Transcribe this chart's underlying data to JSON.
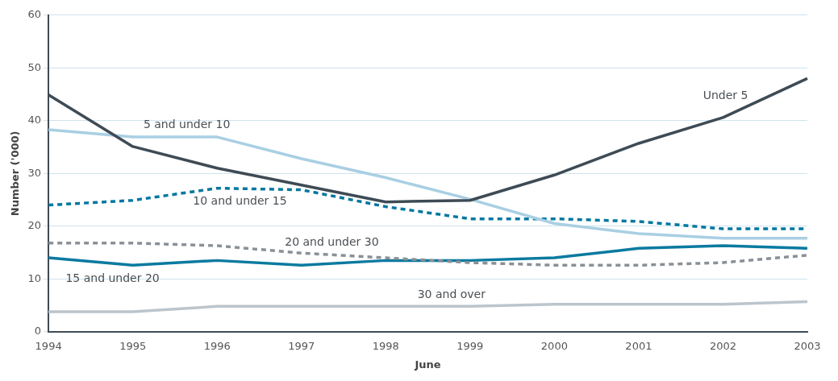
{
  "chart_data": {
    "type": "line",
    "xlabel": "June",
    "ylabel": "Number ('000)",
    "categories": [
      "1994",
      "1995",
      "1996",
      "1997",
      "1998",
      "1999",
      "2000",
      "2001",
      "2002",
      "2003"
    ],
    "ylim": [
      0,
      60
    ],
    "yticks": [
      0,
      10,
      20,
      30,
      40,
      50,
      60
    ],
    "grid": "y",
    "legend": false,
    "marker": "none",
    "series": [
      {
        "name": "Under 5",
        "color": "#3e4b55",
        "line_style": "solid",
        "values": [
          44.9,
          35.1,
          31,
          27.8,
          24.6,
          24.9,
          29.7,
          35.7,
          40.6,
          48
        ]
      },
      {
        "name": "5 and under 10",
        "color": "#a9cfe3",
        "line_style": "solid",
        "values": [
          38.3,
          36.9,
          36.9,
          32.8,
          29.2,
          25.1,
          20.5,
          18.6,
          17.7,
          17.7
        ]
      },
      {
        "name": "10 and under 15",
        "color": "#0077a0",
        "line_style": "dashed",
        "values": [
          24,
          24.9,
          27.2,
          26.9,
          23.7,
          21.4,
          21.4,
          20.9,
          19.5,
          19.5
        ]
      },
      {
        "name": "20 and under 30",
        "color": "#8a9096",
        "line_style": "dashed",
        "values": [
          16.8,
          16.8,
          16.3,
          14.9,
          14,
          13.1,
          12.6,
          12.6,
          13.1,
          14.5
        ]
      },
      {
        "name": "15 and under 20",
        "color": "#0a7aa0",
        "line_style": "solid",
        "values": [
          14,
          12.6,
          13.5,
          12.6,
          13.5,
          13.5,
          14,
          15.8,
          16.3,
          15.8
        ]
      },
      {
        "name": "30 and over",
        "color": "#bcc5cc",
        "line_style": "solid",
        "values": [
          3.8,
          3.8,
          4.8,
          4.8,
          4.8,
          4.8,
          5.2,
          5.2,
          5.2,
          5.7
        ]
      }
    ]
  }
}
